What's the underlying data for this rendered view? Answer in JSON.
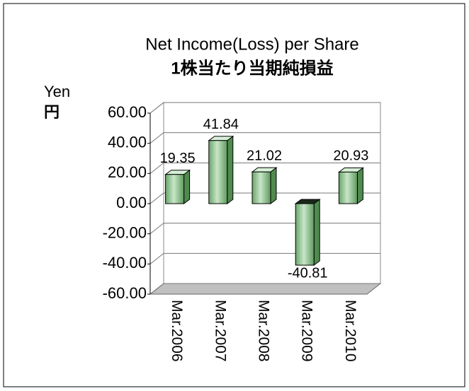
{
  "chart_data": {
    "type": "bar3d",
    "title": "Net Income(Loss) per Share",
    "subtitle": "1株当たり当期純損益",
    "y_label": "Yen",
    "y_label_2": "円",
    "categories": [
      "Mar.2006",
      "Mar.2007",
      "Mar.2008",
      "Mar.2009",
      "Mar.2010"
    ],
    "values": [
      19.35,
      41.84,
      21.02,
      -40.81,
      20.93
    ],
    "color": "#8fc98f",
    "negative_label_color": "#e00000",
    "ylim": [
      -60,
      60
    ],
    "yticks": [
      {
        "value": -60,
        "label": "-60.00"
      },
      {
        "value": -40,
        "label": "-40.00"
      },
      {
        "value": -20,
        "label": "-20.00"
      },
      {
        "value": 0,
        "label": "0.00"
      },
      {
        "value": 20,
        "label": "20.00"
      },
      {
        "value": 40,
        "label": "40.00"
      },
      {
        "value": 60,
        "label": "60.00"
      }
    ],
    "grid": true
  }
}
